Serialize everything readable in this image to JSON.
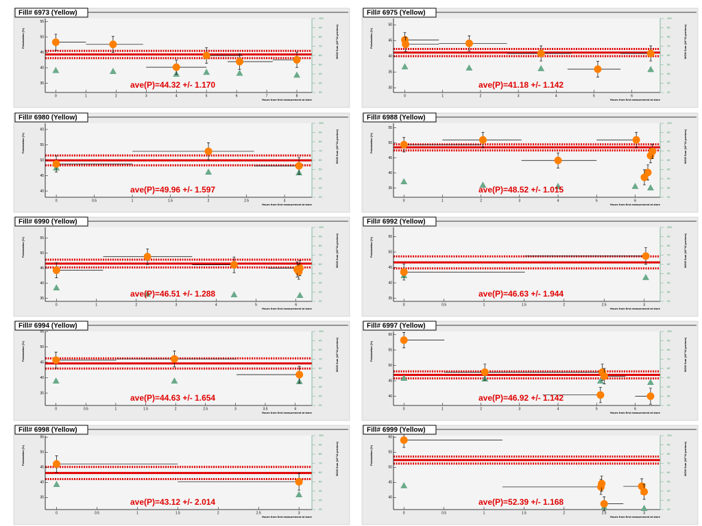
{
  "chart_data": [
    {
      "type": "scatter",
      "title": "Fill# 6973 (Yellow)",
      "annotation": "ave(P)=44.32 +/- 1.170",
      "mean": 44.32,
      "mean_err": 1.17,
      "xlabel": "Hours from first measurement at store",
      "ylabel": "Polarization (%)",
      "y2label": "WCM Sum (10^11 protons)",
      "xlim": [
        -0.35,
        8.5
      ],
      "xticks": [
        0,
        1,
        2,
        3,
        4,
        5,
        6,
        7,
        8
      ],
      "ylim": [
        32,
        56
      ],
      "yticks": [
        35,
        40,
        45,
        50,
        55
      ],
      "y2lim": [
        20,
        100
      ],
      "y2ticks": [
        20,
        30,
        40,
        50,
        60,
        70,
        80,
        90,
        100
      ],
      "color": "#ff8000",
      "wcm_color": "#6aaa8a",
      "mean_color": "#e00000",
      "x": [
        0,
        1.9,
        4,
        5,
        6.1,
        8
      ],
      "values": [
        48.3,
        47.6,
        40.2,
        44,
        42,
        42.6
      ],
      "yerr": [
        2.6,
        2.6,
        2.3,
        2.5,
        2.5,
        2.5
      ],
      "xmin": [
        0,
        1,
        3,
        5,
        5.7,
        7.2
      ],
      "xmax": [
        1,
        2.9,
        5,
        6.2,
        7.2,
        8
      ],
      "wcm_x": [
        0,
        1.9,
        4,
        5,
        6.1,
        8
      ],
      "wcm_values": [
        44,
        43,
        40,
        42,
        41,
        39
      ]
    },
    {
      "type": "scatter",
      "title": "Fill# 6975 (Yellow)",
      "annotation": "ave(P)=41.18 +/- 1.142",
      "mean": 41.18,
      "mean_err": 1.142,
      "xlabel": "Hours from first measurement at store",
      "ylabel": "Polarization (%)",
      "y2label": "WCM Sum (10^11 protons)",
      "xlim": [
        -0.3,
        6.75
      ],
      "xticks": [
        0,
        1,
        2,
        3,
        4,
        5,
        6
      ],
      "ylim": [
        28.5,
        52
      ],
      "yticks": [
        30,
        35,
        40,
        45,
        50
      ],
      "y2lim": [
        20,
        100
      ],
      "y2ticks": [
        20,
        30,
        40,
        50,
        60,
        70,
        80,
        90,
        100
      ],
      "color": "#ff8000",
      "wcm_color": "#6aaa8a",
      "mean_color": "#e00000",
      "x": [
        0,
        0.02,
        1.7,
        3.6,
        5.1,
        6.5
      ],
      "values": [
        45.2,
        43.8,
        44.1,
        40.9,
        35.9,
        40.9
      ],
      "yerr": [
        2.3,
        2.3,
        2.4,
        2.4,
        2.5,
        2.4
      ],
      "xmin": [
        0,
        0,
        0.9,
        2.7,
        4.3,
        5.7
      ],
      "xmax": [
        0.9,
        0.9,
        2.7,
        4.4,
        5.7,
        6.5
      ],
      "wcm_x": [
        0,
        1.7,
        3.6,
        6.5
      ],
      "wcm_values": [
        48,
        46.7,
        46,
        45
      ]
    },
    {
      "type": "scatter",
      "title": "Fill# 6980 (Yellow)",
      "annotation": "ave(P)=49.96 +/- 1.597",
      "mean": 49.96,
      "mean_err": 1.597,
      "xlabel": "Hours from first measurement at store",
      "ylabel": "Polarization (%)",
      "y2label": "WCM Sum (10^11 protons)",
      "xlim": [
        -0.145,
        3.36
      ],
      "xticks": [
        0,
        0.5,
        1,
        1.5,
        2,
        2.5,
        3
      ],
      "ylim": [
        38,
        62
      ],
      "yticks": [
        40,
        45,
        50,
        55,
        60
      ],
      "y2lim": [
        20,
        100
      ],
      "y2ticks": [
        20,
        30,
        40,
        50,
        60,
        70,
        80,
        90,
        100
      ],
      "color": "#ff8000",
      "wcm_color": "#6aaa8a",
      "mean_color": "#e00000",
      "x": [
        0,
        2,
        3.19
      ],
      "values": [
        48.8,
        52.9,
        48.2
      ],
      "yerr": [
        2.6,
        2.8,
        2.7
      ],
      "xmin": [
        0,
        1,
        2.6
      ],
      "xmax": [
        1,
        2.6,
        3.19
      ],
      "wcm_x": [
        0,
        2,
        3.19
      ],
      "wcm_values": [
        51.9,
        47.4,
        46.7
      ]
    },
    {
      "type": "scatter",
      "title": "Fill# 6988 (Yellow)",
      "annotation": "ave(P)=48.52 +/- 1.015",
      "mean": 48.52,
      "mean_err": 1.015,
      "xlabel": "Hours from first measurement at store",
      "ylabel": "Polarization (%)",
      "y2label": "WCM Sum (10^11 protons)",
      "xlim": [
        -0.27,
        6.65
      ],
      "xticks": [
        0,
        1,
        2,
        3,
        4,
        5,
        6
      ],
      "ylim": [
        32,
        56.5
      ],
      "yticks": [
        35,
        40,
        45,
        50,
        55
      ],
      "y2lim": [
        20,
        100
      ],
      "y2ticks": [
        20,
        30,
        40,
        50,
        60,
        70,
        80,
        90,
        100
      ],
      "color": "#ff8000",
      "wcm_color": "#6aaa8a",
      "mean_color": "#e00000",
      "x": [
        0,
        2.05,
        4,
        6.03,
        6.4,
        6.45,
        6.33,
        6.24
      ],
      "values": [
        49.4,
        51,
        44.2,
        51,
        45.8,
        47.2,
        40.2,
        38.6
      ],
      "yerr": [
        2.4,
        2.5,
        2.5,
        2.5,
        2.4,
        2.4,
        2.5,
        2.5
      ],
      "xmin": [
        0,
        1,
        3.05,
        5,
        6.4,
        6.45,
        6.33,
        6.24
      ],
      "xmax": [
        2,
        3.05,
        5,
        6.03,
        6.4,
        6.45,
        6.33,
        6.24
      ],
      "wcm_x": [
        0,
        2.05,
        4,
        6,
        6.4
      ],
      "wcm_values": [
        37,
        33.3,
        31.9,
        31.9,
        30.4
      ]
    },
    {
      "type": "scatter",
      "title": "Fill# 6990 (Yellow)",
      "annotation": "ave(P)=46.51 +/- 1.288",
      "mean": 46.51,
      "mean_err": 1.288,
      "xlabel": "Hours from first measurement at store",
      "ylabel": "Polarization (%)",
      "y2label": "WCM Sum (10^11 protons)",
      "xlim": [
        -0.28,
        6.4
      ],
      "xticks": [
        0,
        1,
        2,
        3,
        4,
        5,
        6
      ],
      "ylim": [
        34,
        58.5
      ],
      "yticks": [
        35,
        40,
        45,
        50,
        55
      ],
      "y2lim": [
        20,
        100
      ],
      "y2ticks": [
        20,
        30,
        40,
        50,
        60,
        70,
        80,
        90,
        100
      ],
      "color": "#ff8000",
      "wcm_color": "#6aaa8a",
      "mean_color": "#e00000",
      "x": [
        0,
        2.28,
        4.45,
        6.1,
        6.07,
        6.03
      ],
      "values": [
        44.3,
        48.8,
        46.1,
        45,
        43.8,
        44.6
      ],
      "yerr": [
        2.5,
        2.6,
        2.6,
        2.5,
        2.5,
        2.5
      ],
      "xmin": [
        0,
        1.17,
        3.4,
        5.3,
        6.07,
        6.03
      ],
      "xmax": [
        1.17,
        3.4,
        4.45,
        6.1,
        6.07,
        6.03
      ],
      "wcm_x": [
        0,
        2.28,
        4.45,
        6.1
      ],
      "wcm_values": [
        34.8,
        28.1,
        27.4,
        26.7
      ]
    },
    {
      "type": "scatter",
      "title": "Fill# 6992 (Yellow)",
      "annotation": "ave(P)=46.63 +/- 1.944",
      "mean": 46.63,
      "mean_err": 1.944,
      "xlabel": "Hours from first measurement at store",
      "ylabel": "Polarization (%)",
      "y2label": "WCM Sum (10^11 protons)",
      "xlim": [
        -0.13,
        3.2
      ],
      "xticks": [
        0,
        0.5,
        1,
        1.5,
        2,
        2.5,
        3
      ],
      "ylim": [
        34,
        58
      ],
      "yticks": [
        35,
        40,
        45,
        50,
        55
      ],
      "y2lim": [
        20,
        100
      ],
      "y2ticks": [
        20,
        30,
        40,
        50,
        60,
        70,
        80,
        90,
        100
      ],
      "color": "#ff8000",
      "wcm_color": "#6aaa8a",
      "mean_color": "#e00000",
      "x": [
        0,
        3.02
      ],
      "values": [
        43.5,
        48.7
      ],
      "yerr": [
        2.6,
        2.7
      ],
      "xmin": [
        0,
        1.51
      ],
      "xmax": [
        1.51,
        3.02
      ],
      "wcm_x": [
        0,
        3.02
      ],
      "wcm_values": [
        48.1,
        46
      ]
    },
    {
      "type": "scatter",
      "title": "Fill# 6994 (Yellow)",
      "annotation": "ave(P)=44.63 +/- 1.654",
      "mean": 44.63,
      "mean_err": 1.654,
      "xlabel": "Hours from first measurement at store",
      "ylabel": "Polarization (%)",
      "y2label": "WCM Sum (10^11 protons)",
      "xlim": [
        -0.18,
        4.28
      ],
      "xticks": [
        0,
        0.5,
        1,
        1.5,
        2,
        2.5,
        3,
        3.5,
        4
      ],
      "ylim": [
        31,
        55
      ],
      "yticks": [
        35,
        40,
        45,
        50,
        55
      ],
      "y2lim": [
        20,
        100
      ],
      "y2ticks": [
        20,
        30,
        40,
        50,
        60,
        70,
        80,
        90,
        100
      ],
      "color": "#ff8000",
      "wcm_color": "#6aaa8a",
      "mean_color": "#e00000",
      "x": [
        0,
        1.98,
        4.07
      ],
      "values": [
        45.7,
        46.1,
        41
      ],
      "yerr": [
        2.6,
        2.6,
        2.7
      ],
      "xmin": [
        0,
        1.01,
        3.02
      ],
      "xmax": [
        1.01,
        3.02,
        4.07
      ],
      "wcm_x": [
        0,
        1.98,
        4.07
      ],
      "wcm_values": [
        46.7,
        46.7,
        46
      ]
    },
    {
      "type": "scatter",
      "title": "Fill# 6997 (Yellow)",
      "annotation": "ave(P)=46.92 +/- 1.142",
      "mean": 46.92,
      "mean_err": 1.142,
      "xlabel": "Hours from first measurement at store",
      "ylabel": "Polarization (%)",
      "y2label": "WCM Sum (10^11 protons)",
      "xlim": [
        -0.27,
        6.65
      ],
      "xticks": [
        0,
        1,
        2,
        3,
        4,
        5,
        6
      ],
      "ylim": [
        37,
        61
      ],
      "yticks": [
        40,
        45,
        50,
        55,
        60
      ],
      "y2lim": [
        20,
        100
      ],
      "y2ticks": [
        20,
        30,
        40,
        50,
        60,
        70,
        80,
        90,
        100
      ],
      "color": "#ff8000",
      "wcm_color": "#6aaa8a",
      "mean_color": "#e00000",
      "x": [
        0,
        2.1,
        5.15,
        5.2,
        5.1,
        6.4
      ],
      "values": [
        58.2,
        47.8,
        47.8,
        46.5,
        40.4,
        40
      ],
      "yerr": [
        2.5,
        2.6,
        2.6,
        2.5,
        2.5,
        2.6
      ],
      "xmin": [
        0,
        1.05,
        3.6,
        5.2,
        3.6,
        6
      ],
      "xmax": [
        1.05,
        3.6,
        5.15,
        5.75,
        5.1,
        6.4
      ],
      "wcm_x": [
        0,
        2.1,
        5.1,
        6.4
      ],
      "wcm_values": [
        49.6,
        48.9,
        46.7,
        45.2
      ]
    },
    {
      "type": "scatter",
      "title": "Fill# 6998 (Yellow)",
      "annotation": "ave(P)=43.12 +/- 2.014",
      "mean": 43.12,
      "mean_err": 2.014,
      "xlabel": "Hours from first measurement at store",
      "ylabel": "Polarization (%)",
      "y2label": "WCM Sum (10^11 protons)",
      "xlim": [
        -0.14,
        3.16
      ],
      "xticks": [
        0,
        0.5,
        1,
        1.5,
        2,
        2.5,
        3
      ],
      "ylim": [
        31,
        55.5
      ],
      "yticks": [
        35,
        40,
        45,
        50,
        55
      ],
      "y2lim": [
        20,
        100
      ],
      "y2ticks": [
        20,
        30,
        40,
        50,
        60,
        70,
        80,
        90,
        100
      ],
      "color": "#ff8000",
      "wcm_color": "#6aaa8a",
      "mean_color": "#e00000",
      "x": [
        0,
        3
      ],
      "values": [
        46.1,
        40.2
      ],
      "yerr": [
        2.7,
        2.8
      ],
      "xmin": [
        0,
        1.5
      ],
      "xmax": [
        1.5,
        3
      ],
      "wcm_x": [
        0,
        3
      ],
      "wcm_values": [
        47.4,
        36.3
      ]
    },
    {
      "type": "scatter",
      "title": "Fill# 6999 (Yellow)",
      "annotation": "ave(P)=52.39 +/- 1.168",
      "mean": 52.39,
      "mean_err": 1.168,
      "xlabel": "Hours from first measurement at store",
      "ylabel": "Polarization (%)",
      "y2label": "WCM Sum (10^11 protons)",
      "xlim": [
        -0.13,
        3.2
      ],
      "xticks": [
        0,
        0.5,
        1,
        1.5,
        2,
        2.5,
        3
      ],
      "ylim": [
        36,
        60.5
      ],
      "yticks": [
        40,
        45,
        50,
        55,
        60
      ],
      "y2lim": [
        20,
        100
      ],
      "y2ticks": [
        20,
        30,
        40,
        50,
        60,
        70,
        80,
        90,
        100
      ],
      "color": "#ff8000",
      "wcm_color": "#6aaa8a",
      "mean_color": "#e00000",
      "x": [
        0,
        2.46,
        2.47,
        2.5,
        2.97,
        3
      ],
      "values": [
        59,
        43.5,
        44.6,
        37.9,
        43.7,
        41.9
      ],
      "yerr": [
        2.4,
        2.5,
        2.5,
        2.3,
        2.5,
        2.5
      ],
      "xmin": [
        0,
        1.23,
        2.47,
        2.5,
        2.74,
        3
      ],
      "xmax": [
        1.23,
        2.46,
        2.47,
        2.74,
        2.97,
        3
      ],
      "wcm_x": [
        0,
        2.5,
        3
      ],
      "wcm_values": [
        46,
        23,
        21.5
      ]
    }
  ]
}
